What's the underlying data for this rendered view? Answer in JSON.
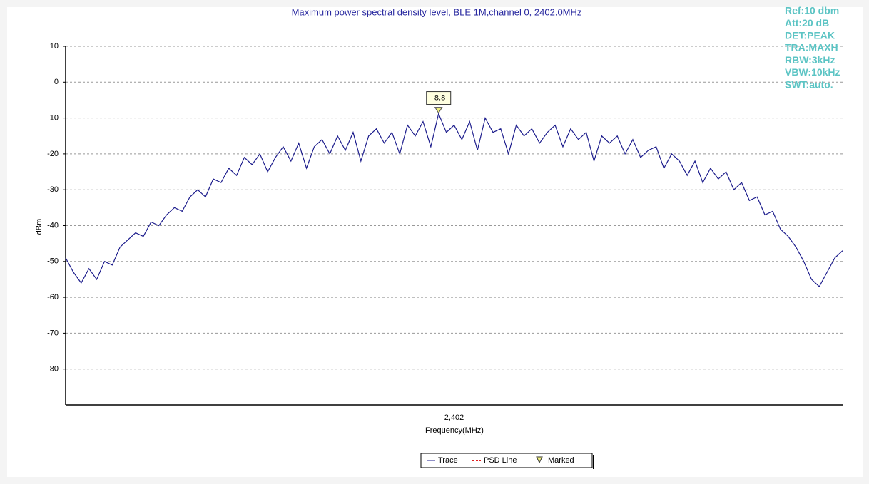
{
  "chart_data": {
    "type": "line",
    "title": "Maximum power spectral density level, BLE 1M,channel 0, 2402.0MHz",
    "xlabel": "Frequency(MHz)",
    "ylabel": "dBm",
    "info": [
      "Ref:10 dbm",
      "Att:20 dB",
      "DET:PEAK",
      "TRA:MAXH",
      "RBW:3kHz",
      "VBW:10kHz",
      "SWT:auto."
    ],
    "xlim": [
      2401.5,
      2402.5
    ],
    "xticks": [
      {
        "value": 2402,
        "label": "2,402"
      }
    ],
    "ylim": [
      -90,
      10
    ],
    "yticks": [
      10,
      0,
      -10,
      -20,
      -30,
      -40,
      -50,
      -60,
      -70,
      -80
    ],
    "grid": true,
    "x": [
      2401.5,
      2401.51,
      2401.52,
      2401.53,
      2401.54,
      2401.55,
      2401.56,
      2401.57,
      2401.58,
      2401.59,
      2401.6,
      2401.61,
      2401.62,
      2401.63,
      2401.64,
      2401.65,
      2401.66,
      2401.67,
      2401.68,
      2401.69,
      2401.7,
      2401.71,
      2401.72,
      2401.73,
      2401.74,
      2401.75,
      2401.76,
      2401.77,
      2401.78,
      2401.79,
      2401.8,
      2401.81,
      2401.82,
      2401.83,
      2401.84,
      2401.85,
      2401.86,
      2401.87,
      2401.88,
      2401.89,
      2401.9,
      2401.91,
      2401.92,
      2401.93,
      2401.94,
      2401.95,
      2401.96,
      2401.97,
      2401.98,
      2401.99,
      2402,
      2402.01,
      2402.02,
      2402.03,
      2402.04,
      2402.05,
      2402.06,
      2402.07,
      2402.08,
      2402.09,
      2402.1,
      2402.11,
      2402.12,
      2402.13,
      2402.14,
      2402.15,
      2402.16,
      2402.17,
      2402.18,
      2402.19,
      2402.2,
      2402.21,
      2402.22,
      2402.23,
      2402.24,
      2402.25,
      2402.26,
      2402.27,
      2402.28,
      2402.29,
      2402.3,
      2402.31,
      2402.32,
      2402.33,
      2402.34,
      2402.35,
      2402.36,
      2402.37,
      2402.38,
      2402.39,
      2402.4,
      2402.41,
      2402.42,
      2402.43,
      2402.44,
      2402.45,
      2402.46,
      2402.47,
      2402.48,
      2402.49,
      2402.5
    ],
    "series": [
      {
        "name": "Trace",
        "color": "#1c1c8c",
        "values": [
          -49,
          -53,
          -56,
          -52,
          -55,
          -50,
          -51,
          -46,
          -44,
          -42,
          -43,
          -39,
          -40,
          -37,
          -35,
          -36,
          -32,
          -30,
          -32,
          -27,
          -28,
          -24,
          -26,
          -21,
          -23,
          -20,
          -25,
          -21,
          -18,
          -22,
          -17,
          -24,
          -18,
          -16,
          -20,
          -15,
          -19,
          -14,
          -22,
          -15,
          -13,
          -17,
          -14,
          -20,
          -12,
          -15,
          -11,
          -18,
          -8.8,
          -14,
          -12,
          -16,
          -11,
          -19,
          -10,
          -14,
          -13,
          -20,
          -12,
          -15,
          -13,
          -17,
          -14,
          -12,
          -18,
          -13,
          -16,
          -14,
          -22,
          -15,
          -17,
          -15,
          -20,
          -16,
          -21,
          -19,
          -18,
          -24,
          -20,
          -22,
          -26,
          -22,
          -28,
          -24,
          -27,
          -25,
          -30,
          -28,
          -33,
          -32,
          -37,
          -36,
          -41,
          -43,
          -46,
          -50,
          -55,
          -57,
          -53,
          -49,
          -47
        ]
      }
    ],
    "marker": {
      "x": 2401.98,
      "value": -8.8,
      "color": "#f0f080"
    },
    "legend_items": [
      {
        "name": "Trace",
        "color": "#1c1c8c"
      },
      {
        "name": "PSD Line",
        "color": "#e02020"
      },
      {
        "name": "Marked",
        "color": "#f0f080"
      }
    ]
  }
}
